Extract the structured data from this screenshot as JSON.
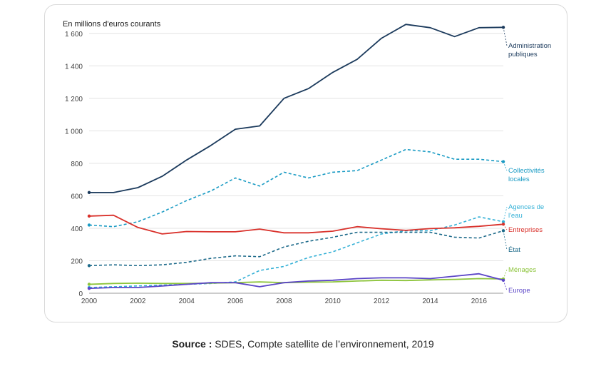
{
  "chart_data": {
    "type": "line",
    "unit_label": "En millions d'euros courants",
    "x": [
      2000,
      2001,
      2002,
      2003,
      2004,
      2005,
      2006,
      2007,
      2008,
      2009,
      2010,
      2011,
      2012,
      2013,
      2014,
      2015,
      2016,
      2017
    ],
    "x_ticks": [
      "2000",
      "2002",
      "2004",
      "2006",
      "2008",
      "2010",
      "2012",
      "2014",
      "2016"
    ],
    "y_ticks": [
      "0",
      "200",
      "400",
      "600",
      "800",
      "1 000",
      "1 200",
      "1 400",
      "1 600"
    ],
    "ylim": [
      0,
      1700
    ],
    "grid": true,
    "legend_placement": "right (direct labels)",
    "series": [
      {
        "name": "Administration publiques",
        "label_lines": [
          "Administration",
          "publiques"
        ],
        "color": "#1b3a5c",
        "dash": false,
        "values": [
          620,
          620,
          650,
          720,
          820,
          910,
          1010,
          1030,
          1200,
          1260,
          1360,
          1440,
          1570,
          1655,
          1635,
          1580,
          1635,
          1637
        ]
      },
      {
        "name": "Collectivités locales",
        "label_lines": [
          "Collectivités",
          "locales"
        ],
        "color": "#1a9bc4",
        "dash": true,
        "values": [
          420,
          410,
          440,
          500,
          570,
          630,
          710,
          660,
          745,
          710,
          745,
          755,
          820,
          885,
          870,
          825,
          825,
          810
        ]
      },
      {
        "name": "Agences de l'eau",
        "label_lines": [
          "Agences de",
          "l'eau"
        ],
        "color": "#33b0d6",
        "dash": true,
        "values": [
          35,
          40,
          45,
          50,
          55,
          60,
          70,
          140,
          165,
          220,
          255,
          310,
          365,
          385,
          385,
          420,
          470,
          440
        ]
      },
      {
        "name": "Entreprises",
        "label_lines": [
          "Entreprises"
        ],
        "color": "#d9312b",
        "dash": false,
        "values": [
          475,
          480,
          405,
          365,
          380,
          378,
          378,
          395,
          372,
          372,
          382,
          410,
          397,
          387,
          398,
          403,
          412,
          425
        ]
      },
      {
        "name": "État",
        "label_lines": [
          "État"
        ],
        "color": "#1d6a8a",
        "dash": true,
        "values": [
          170,
          175,
          170,
          175,
          190,
          215,
          230,
          225,
          285,
          320,
          345,
          375,
          375,
          375,
          375,
          345,
          340,
          385
        ]
      },
      {
        "name": "Ménages",
        "label_lines": [
          "Ménages"
        ],
        "color": "#8dc43c",
        "dash": false,
        "values": [
          55,
          60,
          62,
          60,
          60,
          62,
          65,
          70,
          65,
          68,
          70,
          75,
          80,
          78,
          82,
          85,
          90,
          88
        ]
      },
      {
        "name": "Europe",
        "label_lines": [
          "Europe"
        ],
        "color": "#5b45c7",
        "dash": false,
        "values": [
          30,
          35,
          35,
          45,
          55,
          65,
          65,
          40,
          65,
          75,
          80,
          90,
          95,
          95,
          90,
          105,
          120,
          80
        ]
      }
    ]
  },
  "source": {
    "label": "Source :",
    "text": " SDES, Compte satellite de l’environnement, 2019"
  }
}
